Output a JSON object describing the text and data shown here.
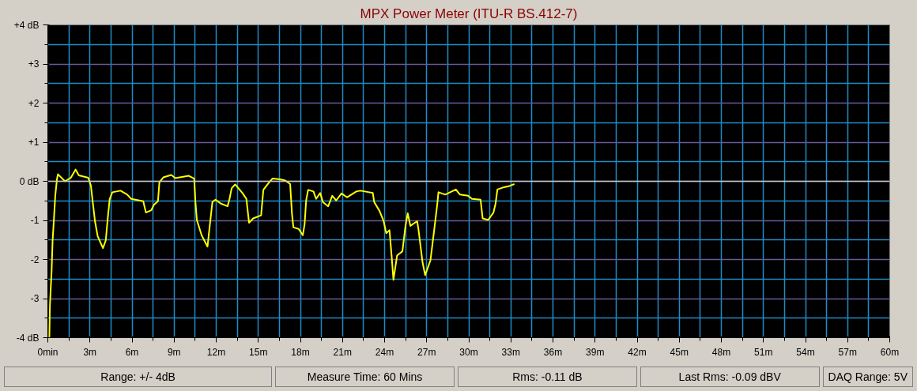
{
  "chart_data": {
    "type": "line",
    "title": "MPX Power Meter (ITU-R BS.412-7)",
    "x": [
      0.11,
      0.15,
      0.27,
      0.34,
      0.44,
      0.53,
      0.65,
      0.72,
      1.22,
      1.64,
      1.98,
      2.21,
      2.88,
      3.07,
      3.2,
      3.36,
      3.55,
      3.93,
      4.13,
      4.28,
      4.41,
      4.6,
      5.18,
      5.66,
      5.94,
      6.8,
      6.99,
      7.37,
      7.56,
      7.85,
      7.95,
      8.23,
      8.8,
      9.09,
      10.05,
      10.43,
      10.52,
      10.62,
      10.96,
      11.38,
      11.54,
      11.73,
      11.95,
      12.33,
      12.81,
      12.95,
      13.1,
      13.35,
      13.87,
      14.15,
      14.34,
      14.63,
      15.2,
      15.36,
      15.68,
      16.01,
      16.54,
      16.92,
      17.27,
      17.4,
      17.5,
      17.88,
      18.17,
      18.3,
      18.41,
      18.55,
      18.93,
      19.12,
      19.41,
      19.6,
      19.98,
      20.27,
      20.55,
      20.93,
      21.32,
      21.99,
      22.27,
      22.59,
      23.16,
      23.26,
      23.64,
      23.93,
      24.12,
      24.35,
      24.5,
      24.63,
      24.89,
      25.27,
      25.49,
      25.65,
      25.84,
      26.32,
      26.41,
      26.7,
      26.89,
      27.27,
      27.52,
      27.75,
      27.84,
      28.32,
      29.08,
      29.37,
      29.94,
      30.23,
      30.84,
      30.99,
      31.38,
      31.76,
      31.91,
      32.04,
      32.52,
      32.9,
      33.25
    ],
    "series": [
      {
        "color": "#ffff00",
        "values": [
          -4.0,
          -3.17,
          -2.29,
          -1.52,
          -0.94,
          -0.37,
          0.05,
          0.18,
          0.0,
          0.09,
          0.3,
          0.15,
          0.09,
          -0.11,
          -0.53,
          -1.02,
          -1.4,
          -1.71,
          -1.51,
          -0.91,
          -0.45,
          -0.28,
          -0.24,
          -0.34,
          -0.45,
          -0.51,
          -0.8,
          -0.74,
          -0.6,
          -0.51,
          -0.03,
          0.1,
          0.16,
          0.08,
          0.14,
          0.07,
          -0.53,
          -0.99,
          -1.38,
          -1.67,
          -1.14,
          -0.53,
          -0.47,
          -0.57,
          -0.64,
          -0.45,
          -0.18,
          -0.08,
          -0.3,
          -0.45,
          -1.06,
          -0.95,
          -0.87,
          -0.22,
          -0.07,
          0.07,
          0.05,
          0.02,
          -0.07,
          -0.83,
          -1.18,
          -1.22,
          -1.38,
          -1.1,
          -0.49,
          -0.22,
          -0.26,
          -0.45,
          -0.3,
          -0.53,
          -0.64,
          -0.37,
          -0.49,
          -0.31,
          -0.41,
          -0.26,
          -0.24,
          -0.26,
          -0.3,
          -0.53,
          -0.76,
          -1.02,
          -1.33,
          -1.25,
          -1.9,
          -2.52,
          -1.9,
          -1.79,
          -1.14,
          -0.82,
          -1.14,
          -1.02,
          -1.22,
          -2.06,
          -2.4,
          -2.02,
          -1.29,
          -0.6,
          -0.28,
          -0.34,
          -0.21,
          -0.34,
          -0.37,
          -0.45,
          -0.47,
          -0.95,
          -0.99,
          -0.8,
          -0.57,
          -0.21,
          -0.15,
          -0.12,
          -0.07
        ]
      }
    ],
    "xlim": [
      0,
      60
    ],
    "ylim": [
      -4,
      4
    ],
    "xticks": [
      {
        "value": 0,
        "label": "0min"
      },
      {
        "value": 3,
        "label": "3m"
      },
      {
        "value": 6,
        "label": "6m"
      },
      {
        "value": 9,
        "label": "9m"
      },
      {
        "value": 12,
        "label": "12m"
      },
      {
        "value": 15,
        "label": "15m"
      },
      {
        "value": 18,
        "label": "18m"
      },
      {
        "value": 21,
        "label": "21m"
      },
      {
        "value": 24,
        "label": "24m"
      },
      {
        "value": 27,
        "label": "27m"
      },
      {
        "value": 30,
        "label": "30m"
      },
      {
        "value": 33,
        "label": "33m"
      },
      {
        "value": 36,
        "label": "36m"
      },
      {
        "value": 39,
        "label": "39m"
      },
      {
        "value": 42,
        "label": "42m"
      },
      {
        "value": 45,
        "label": "45m"
      },
      {
        "value": 48,
        "label": "48m"
      },
      {
        "value": 51,
        "label": "51m"
      },
      {
        "value": 54,
        "label": "54m"
      },
      {
        "value": 57,
        "label": "57m"
      },
      {
        "value": 60,
        "label": "60m"
      }
    ],
    "yticks": [
      {
        "value": -4,
        "label": "-4 dB"
      },
      {
        "value": -3,
        "label": "-3"
      },
      {
        "value": -2,
        "label": "-2"
      },
      {
        "value": -1,
        "label": "-1"
      },
      {
        "value": 0,
        "label": "0 dB"
      },
      {
        "value": 1,
        "label": "+1"
      },
      {
        "value": 2,
        "label": "+2"
      },
      {
        "value": 3,
        "label": "+3"
      },
      {
        "value": 4,
        "label": "+4 dB"
      }
    ],
    "ref_lines": [
      {
        "axis": "y",
        "value": 0,
        "color": "#c8c8c8"
      }
    ],
    "grid": true,
    "line_style": "solid",
    "annotations": [
      "Range: +/- 4dB",
      "Measure Time: 60 Mins",
      "Rms: -0.11 dB",
      "Last Rms: -0.09 dBV",
      "DAQ Range: 5V"
    ]
  }
}
